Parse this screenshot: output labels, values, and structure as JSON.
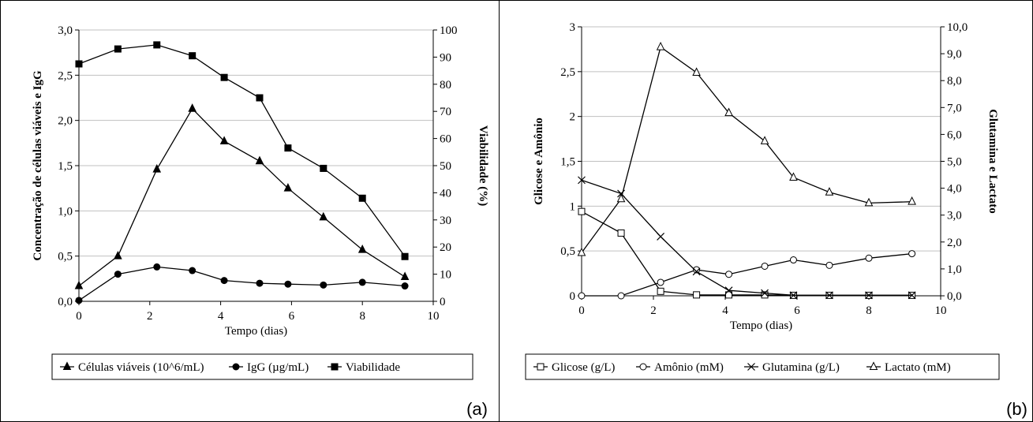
{
  "chart_data": [
    {
      "panel_label": "(a)",
      "type": "line",
      "xlabel": "Tempo (dias)",
      "ylabel_left": "Concentração de células viáveis e IgG",
      "ylabel_right": "Viabilidade (%)",
      "xlim": [
        0,
        10
      ],
      "xticks": [
        "0",
        "2",
        "4",
        "6",
        "8",
        "10"
      ],
      "ylim_left": [
        0,
        3.0
      ],
      "yticks_left": [
        "0,0",
        "0,5",
        "1,0",
        "1,5",
        "2,0",
        "2,5",
        "3,0"
      ],
      "ylim_right": [
        0,
        100
      ],
      "yticks_right": [
        "0",
        "10",
        "20",
        "30",
        "40",
        "50",
        "60",
        "70",
        "80",
        "90",
        "100"
      ],
      "grid": "horizontal",
      "legend_placement": "bottom",
      "series": [
        {
          "name": "Células viáveis (10^6/mL)",
          "marker": "filled-triangle",
          "axis": "left",
          "x": [
            0,
            1.1,
            2.2,
            3.2,
            4.1,
            5.1,
            5.9,
            6.9,
            8.0,
            9.2
          ],
          "y": [
            0.17,
            0.5,
            1.46,
            2.13,
            1.77,
            1.55,
            1.25,
            0.93,
            0.57,
            0.27
          ]
        },
        {
          "name": "IgG (µg/mL)",
          "marker": "filled-circle",
          "axis": "left",
          "x": [
            0,
            1.1,
            2.2,
            3.2,
            4.1,
            5.1,
            5.9,
            6.9,
            8.0,
            9.2
          ],
          "y": [
            0.01,
            0.3,
            0.38,
            0.34,
            0.23,
            0.2,
            0.19,
            0.18,
            0.21,
            0.17
          ]
        },
        {
          "name": "Viabilidade",
          "marker": "filled-square",
          "axis": "right",
          "x": [
            0,
            1.1,
            2.2,
            3.2,
            4.1,
            5.1,
            5.9,
            6.9,
            8.0,
            9.2
          ],
          "y": [
            87.5,
            93,
            94.5,
            90.5,
            82.5,
            75,
            56.5,
            49,
            38,
            16.5
          ]
        }
      ]
    },
    {
      "panel_label": "(b)",
      "type": "line",
      "xlabel": "Tempo (dias)",
      "ylabel_left": "Glicose e Amônio",
      "ylabel_right": "Glutamina  e Lactato",
      "xlim": [
        0,
        10
      ],
      "xticks": [
        "0",
        "2",
        "4",
        "6",
        "8",
        "10"
      ],
      "ylim_left": [
        0,
        3
      ],
      "yticks_left": [
        "0",
        "0,5",
        "1",
        "1,5",
        "2",
        "2,5",
        "3"
      ],
      "ylim_right": [
        0,
        10
      ],
      "yticks_right": [
        "0,0",
        "1,0",
        "2,0",
        "3,0",
        "4,0",
        "5,0",
        "6,0",
        "7,0",
        "8,0",
        "9,0",
        "10,0"
      ],
      "grid": "horizontal",
      "legend_placement": "bottom",
      "series": [
        {
          "name": "Glicose (g/L)",
          "marker": "open-square",
          "axis": "left",
          "x": [
            0,
            1.1,
            2.2,
            3.2,
            4.1,
            5.1,
            5.9,
            6.9,
            8.0,
            9.2
          ],
          "y": [
            0.94,
            0.7,
            0.05,
            0.01,
            0.01,
            0.01,
            0.005,
            0.005,
            0.005,
            0.005
          ]
        },
        {
          "name": "Amônio (mM)",
          "marker": "open-circle",
          "axis": "left",
          "x": [
            0,
            1.1,
            2.2,
            3.2,
            4.1,
            5.1,
            5.9,
            6.9,
            8.0,
            9.2
          ],
          "y": [
            0.0,
            0.0,
            0.15,
            0.29,
            0.24,
            0.33,
            0.4,
            0.34,
            0.42,
            0.47
          ]
        },
        {
          "name": "Glutamina (g/L)",
          "marker": "x",
          "axis": "right",
          "x": [
            0,
            1.1,
            2.2,
            3.2,
            4.1,
            5.1,
            5.9,
            6.9,
            8.0,
            9.2
          ],
          "y": [
            4.3,
            3.8,
            2.2,
            0.9,
            0.2,
            0.1,
            0.02,
            0.02,
            0.02,
            0.02
          ]
        },
        {
          "name": "Lactato (mM)",
          "marker": "open-triangle",
          "axis": "right",
          "x": [
            0,
            1.1,
            2.2,
            3.2,
            4.1,
            5.1,
            5.9,
            6.9,
            8.0,
            9.2
          ],
          "y": [
            1.6,
            3.6,
            9.25,
            8.3,
            6.8,
            5.75,
            4.4,
            3.85,
            3.45,
            3.5
          ]
        }
      ]
    }
  ]
}
